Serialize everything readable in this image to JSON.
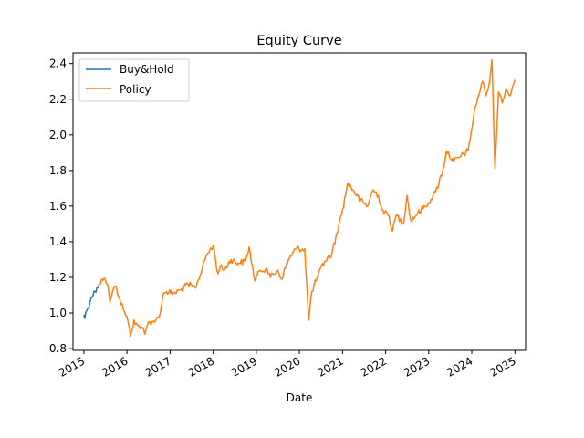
{
  "chart_data": {
    "type": "line",
    "title": "Equity Curve",
    "xlabel": "Date",
    "ylabel": "",
    "xlim": [
      "2014-10-01",
      "2025-04-01"
    ],
    "ylim": [
      0.79,
      2.46
    ],
    "xticks": [
      "2015",
      "2016",
      "2017",
      "2018",
      "2019",
      "2020",
      "2021",
      "2022",
      "2023",
      "2024",
      "2025"
    ],
    "yticks": [
      "0.8",
      "1.0",
      "1.2",
      "1.4",
      "1.6",
      "1.8",
      "2.0",
      "2.2",
      "2.4"
    ],
    "legend_position": "top-left",
    "grid": false,
    "series": [
      {
        "name": "Buy&Hold",
        "color": "#1f77b4",
        "points": [
          [
            "2015-01-01",
            0.99
          ],
          [
            "2015-01-10",
            0.97
          ],
          [
            "2015-01-20",
            1.01
          ],
          [
            "2015-02-05",
            1.03
          ],
          [
            "2015-02-20",
            1.06
          ],
          [
            "2015-03-05",
            1.09
          ],
          [
            "2015-03-20",
            1.1
          ],
          [
            "2015-04-05",
            1.12
          ],
          [
            "2015-04-20",
            1.14
          ],
          [
            "2015-05-10",
            1.16
          ]
        ]
      },
      {
        "name": "Policy",
        "color": "#ff7f0e",
        "points": [
          [
            "2015-05-10",
            1.16
          ],
          [
            "2015-06-01",
            1.19
          ],
          [
            "2015-07-01",
            1.19
          ],
          [
            "2015-07-20",
            1.16
          ],
          [
            "2015-08-10",
            1.06
          ],
          [
            "2015-09-01",
            1.12
          ],
          [
            "2015-10-01",
            1.15
          ],
          [
            "2015-11-01",
            1.08
          ],
          [
            "2015-12-01",
            1.02
          ],
          [
            "2016-01-01",
            0.98
          ],
          [
            "2016-02-01",
            0.87
          ],
          [
            "2016-03-01",
            0.96
          ],
          [
            "2016-04-01",
            0.93
          ],
          [
            "2016-05-01",
            0.92
          ],
          [
            "2016-06-01",
            0.88
          ],
          [
            "2016-07-01",
            0.95
          ],
          [
            "2016-08-01",
            0.95
          ],
          [
            "2016-09-01",
            0.96
          ],
          [
            "2016-10-01",
            0.98
          ],
          [
            "2016-11-01",
            1.1
          ],
          [
            "2016-12-01",
            1.12
          ],
          [
            "2017-02-01",
            1.11
          ],
          [
            "2017-04-01",
            1.13
          ],
          [
            "2017-06-01",
            1.16
          ],
          [
            "2017-08-01",
            1.14
          ],
          [
            "2017-10-01",
            1.25
          ],
          [
            "2017-11-01",
            1.32
          ],
          [
            "2018-01-01",
            1.38
          ],
          [
            "2018-02-10",
            1.22
          ],
          [
            "2018-03-01",
            1.26
          ],
          [
            "2018-04-01",
            1.24
          ],
          [
            "2018-06-01",
            1.3
          ],
          [
            "2018-08-01",
            1.28
          ],
          [
            "2018-10-01",
            1.29
          ],
          [
            "2018-11-01",
            1.37
          ],
          [
            "2018-12-20",
            1.18
          ],
          [
            "2019-02-01",
            1.24
          ],
          [
            "2019-04-01",
            1.25
          ],
          [
            "2019-05-01",
            1.2
          ],
          [
            "2019-07-01",
            1.24
          ],
          [
            "2019-08-01",
            1.19
          ],
          [
            "2019-10-01",
            1.3
          ],
          [
            "2019-12-01",
            1.36
          ],
          [
            "2020-02-15",
            1.36
          ],
          [
            "2020-03-20",
            0.96
          ],
          [
            "2020-04-15",
            1.12
          ],
          [
            "2020-06-01",
            1.2
          ],
          [
            "2020-08-01",
            1.29
          ],
          [
            "2020-10-01",
            1.33
          ],
          [
            "2020-11-15",
            1.45
          ],
          [
            "2021-01-01",
            1.58
          ],
          [
            "2021-02-15",
            1.73
          ],
          [
            "2021-04-01",
            1.69
          ],
          [
            "2021-06-01",
            1.63
          ],
          [
            "2021-08-01",
            1.6
          ],
          [
            "2021-09-15",
            1.69
          ],
          [
            "2021-11-01",
            1.66
          ],
          [
            "2021-12-01",
            1.58
          ],
          [
            "2022-02-01",
            1.54
          ],
          [
            "2022-03-01",
            1.46
          ],
          [
            "2022-04-01",
            1.55
          ],
          [
            "2022-06-01",
            1.5
          ],
          [
            "2022-07-01",
            1.66
          ],
          [
            "2022-08-01",
            1.52
          ],
          [
            "2022-10-01",
            1.56
          ],
          [
            "2022-12-01",
            1.6
          ],
          [
            "2023-01-01",
            1.62
          ],
          [
            "2023-03-01",
            1.68
          ],
          [
            "2023-05-01",
            1.8
          ],
          [
            "2023-06-01",
            1.91
          ],
          [
            "2023-08-01",
            1.85
          ],
          [
            "2023-10-01",
            1.88
          ],
          [
            "2023-12-01",
            1.91
          ],
          [
            "2024-02-01",
            2.16
          ],
          [
            "2024-04-01",
            2.3
          ],
          [
            "2024-05-01",
            2.22
          ],
          [
            "2024-06-01",
            2.3
          ],
          [
            "2024-06-20",
            2.42
          ],
          [
            "2024-07-15",
            1.81
          ],
          [
            "2024-08-15",
            2.24
          ],
          [
            "2024-09-15",
            2.18
          ],
          [
            "2024-10-15",
            2.26
          ],
          [
            "2024-11-15",
            2.22
          ],
          [
            "2024-12-31",
            2.31
          ]
        ]
      }
    ]
  }
}
